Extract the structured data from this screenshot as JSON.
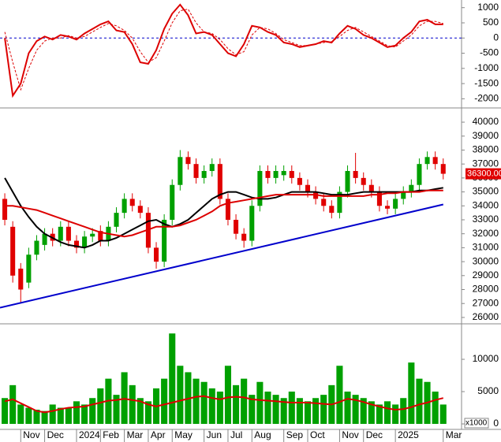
{
  "chart_data": [
    {
      "type": "line",
      "xlim": [
        -0.6,
        57.3
      ],
      "ylim": [
        -2250,
        1200
      ],
      "yticks": [
        -2000,
        -1500,
        -1000,
        -500,
        0,
        500,
        1000
      ],
      "hline": 0,
      "hline_color": "#0000cc",
      "series": [
        {
          "color": "#dd0000",
          "dash": false,
          "values": [
            0,
            -1900,
            -1500,
            -500,
            -100,
            50,
            -50,
            100,
            50,
            -50,
            150,
            300,
            450,
            550,
            250,
            200,
            -200,
            -800,
            -850,
            -400,
            300,
            800,
            1100,
            750,
            150,
            200,
            100,
            -200,
            -500,
            -600,
            -200,
            400,
            350,
            200,
            100,
            -150,
            -200,
            -300,
            -250,
            -200,
            -100,
            -150,
            150,
            400,
            300,
            100,
            0,
            -150,
            -300,
            -250,
            0,
            200,
            550,
            600,
            450,
            450
          ]
        },
        {
          "color": "#dd0000",
          "dash": true,
          "values": [
            200,
            -800,
            -1700,
            -1000,
            -400,
            -100,
            0,
            0,
            80,
            0,
            50,
            200,
            350,
            480,
            400,
            250,
            0,
            -450,
            -800,
            -650,
            -100,
            500,
            900,
            950,
            500,
            200,
            150,
            -50,
            -350,
            -550,
            -450,
            100,
            350,
            300,
            150,
            -50,
            -150,
            -250,
            -250,
            -200,
            -150,
            -120,
            50,
            250,
            350,
            200,
            50,
            -100,
            -250,
            -300,
            -100,
            100,
            400,
            550,
            550,
            480
          ]
        }
      ]
    },
    {
      "type": "candlestick",
      "xlim": [
        -0.6,
        57.3
      ],
      "ylim": [
        25600,
        40850
      ],
      "yticks": [
        26000,
        27000,
        28000,
        29000,
        30000,
        31000,
        32000,
        33000,
        34000,
        35000,
        36000,
        37000,
        38000,
        39000,
        40000
      ],
      "up_color": "#00a000",
      "down_color": "#e00000",
      "open": [
        34500,
        32500,
        29500,
        28500,
        30500,
        31200,
        32000,
        31500,
        32500,
        31500,
        31000,
        31800,
        32200,
        31500,
        32500,
        33500,
        34500,
        34000,
        33500,
        31000,
        30000,
        33000,
        35500,
        37500,
        37000,
        36000,
        36500,
        37000,
        34500,
        33000,
        32000,
        31500,
        34000,
        36500,
        36000,
        36200,
        36500,
        36000,
        35500,
        35000,
        34500,
        34000,
        33500,
        35000,
        36500,
        36000,
        35500,
        35000,
        34000,
        33800,
        34500,
        35000,
        35500,
        37000,
        37500,
        37000
      ],
      "high": [
        34900,
        32900,
        29900,
        31000,
        31900,
        32400,
        32400,
        32900,
        32900,
        31900,
        32200,
        32400,
        32600,
        32900,
        33900,
        34900,
        34900,
        34400,
        33900,
        31400,
        33400,
        35900,
        38000,
        37900,
        37400,
        36900,
        37400,
        37400,
        34900,
        33400,
        32400,
        34400,
        36900,
        36900,
        36900,
        36900,
        36900,
        36400,
        35900,
        35400,
        34900,
        34400,
        35400,
        36900,
        37800,
        36400,
        35900,
        35400,
        34400,
        34900,
        35400,
        35900,
        37400,
        37900,
        37900,
        37400
      ],
      "low": [
        32600,
        28500,
        27000,
        28100,
        30100,
        30800,
        31100,
        31100,
        31100,
        30600,
        30600,
        31400,
        31100,
        31100,
        32100,
        33100,
        33600,
        33100,
        30600,
        29500,
        29600,
        32600,
        35100,
        36600,
        35600,
        35600,
        36100,
        34100,
        32600,
        31600,
        31000,
        31100,
        33600,
        35600,
        35600,
        35800,
        35600,
        35100,
        34600,
        34100,
        33600,
        33100,
        33100,
        34600,
        35600,
        35100,
        34600,
        33600,
        33400,
        33400,
        34100,
        34600,
        35100,
        36600,
        36600,
        35900
      ],
      "close": [
        33000,
        29000,
        28000,
        30500,
        31500,
        32000,
        31500,
        32500,
        31500,
        31000,
        31800,
        32000,
        31500,
        32500,
        33500,
        34500,
        34000,
        33500,
        31000,
        30000,
        33000,
        35500,
        37500,
        37000,
        36000,
        36500,
        37000,
        34500,
        33000,
        32000,
        31500,
        34000,
        36500,
        36000,
        36500,
        36500,
        36000,
        35500,
        35000,
        34500,
        34000,
        33500,
        35000,
        36500,
        36000,
        35500,
        35000,
        34000,
        33800,
        34500,
        35000,
        35500,
        37000,
        37500,
        37000,
        36300
      ],
      "lines": [
        {
          "color": "#000000",
          "values": [
            36000,
            35000,
            34000,
            33200,
            32500,
            32000,
            31700,
            31400,
            31200,
            31100,
            31000,
            31200,
            31500,
            31500,
            31700,
            32000,
            32300,
            32600,
            32900,
            33000,
            32700,
            32500,
            32700,
            33000,
            33500,
            34000,
            34500,
            34800,
            35000,
            35000,
            34800,
            34600,
            34500,
            34500,
            34600,
            34800,
            35000,
            35000,
            35000,
            35000,
            34900,
            34800,
            34800,
            34800,
            34900,
            35000,
            35000,
            35000,
            35000,
            35000,
            35000,
            35000,
            35100,
            35100,
            35200,
            35300
          ]
        },
        {
          "color": "#dd0000",
          "values": [
            34000,
            34000,
            33900,
            33800,
            33700,
            33500,
            33300,
            33100,
            32900,
            32700,
            32500,
            32300,
            32100,
            32000,
            31900,
            31800,
            31900,
            32100,
            32300,
            32500,
            32500,
            32500,
            32600,
            32800,
            33000,
            33300,
            33600,
            34000,
            34200,
            34300,
            34400,
            34500,
            34600,
            34700,
            34800,
            34800,
            34800,
            34800,
            34800,
            34800,
            34700,
            34700,
            34700,
            34700,
            34700,
            34700,
            34800,
            34800,
            34900,
            34900,
            35000,
            35000,
            35000,
            35100,
            35100,
            35100
          ]
        }
      ],
      "trendline": {
        "color": "#0000cc",
        "x": [
          -0.6,
          55
        ],
        "values": [
          26700,
          34100
        ]
      },
      "last_price_label": "36300.00",
      "last_price": 36300
    },
    {
      "type": "bar",
      "xlim": [
        -0.6,
        57.3
      ],
      "ylim": [
        -850,
        15250
      ],
      "yticks": [
        0,
        5000,
        10000
      ],
      "unit_label": "x1000",
      "color": "#00a000",
      "values": [
        4000,
        6000,
        3000,
        2500,
        2200,
        2000,
        3000,
        2500,
        2500,
        3500,
        3000,
        4000,
        5500,
        7000,
        4500,
        8000,
        6000,
        4000,
        3500,
        5500,
        7000,
        14000,
        9000,
        8000,
        7000,
        6500,
        5500,
        5000,
        9000,
        6000,
        7000,
        4500,
        6500,
        5000,
        4500,
        4000,
        5000,
        4000,
        3500,
        4000,
        4500,
        6000,
        9000,
        5000,
        4500,
        4000,
        3500,
        3000,
        3500,
        3000,
        4000,
        9500,
        7000,
        6500,
        5000,
        3000
      ],
      "ma": {
        "color": "#dd0000",
        "values": [
          3500,
          3800,
          3200,
          2600,
          2000,
          1800,
          2000,
          2300,
          2500,
          2600,
          2700,
          3000,
          3300,
          3600,
          3700,
          3900,
          3700,
          3500,
          3000,
          2700,
          3000,
          3300,
          3600,
          3900,
          4200,
          4300,
          4000,
          3800,
          4100,
          4200,
          4100,
          3800,
          3700,
          3600,
          3500,
          3400,
          3300,
          3300,
          3300,
          3200,
          3100,
          3000,
          3400,
          3900,
          3700,
          3400,
          3000,
          2700,
          2400,
          2200,
          2300,
          2600,
          3000,
          3300,
          3700,
          4000
        ]
      },
      "xticks": [
        {
          "value": 2,
          "label": "Nov"
        },
        {
          "value": 5,
          "label": "Dec"
        },
        {
          "value": 9,
          "label": "2024"
        },
        {
          "value": 12,
          "label": "Feb"
        },
        {
          "value": 15,
          "label": "Mar"
        },
        {
          "value": 18,
          "label": "Apr"
        },
        {
          "value": 21,
          "label": "May"
        },
        {
          "value": 25,
          "label": "Jun"
        },
        {
          "value": 28,
          "label": "Jul"
        },
        {
          "value": 31,
          "label": "Aug"
        },
        {
          "value": 35,
          "label": "Sep"
        },
        {
          "value": 38,
          "label": "Oct"
        },
        {
          "value": 42,
          "label": "Nov"
        },
        {
          "value": 45,
          "label": "Dec"
        },
        {
          "value": 49,
          "label": "2025"
        },
        {
          "value": 55,
          "label": "Mar"
        }
      ]
    }
  ]
}
